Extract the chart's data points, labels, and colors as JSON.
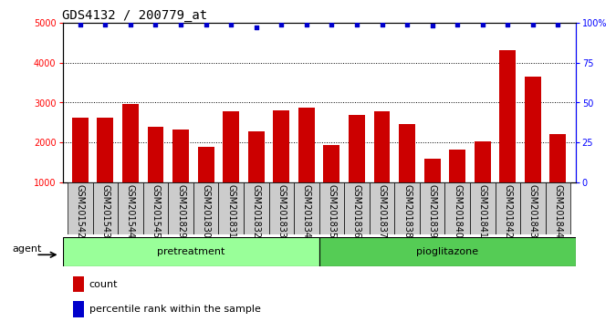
{
  "title": "GDS4132 / 200779_at",
  "categories": [
    "GSM201542",
    "GSM201543",
    "GSM201544",
    "GSM201545",
    "GSM201829",
    "GSM201830",
    "GSM201831",
    "GSM201832",
    "GSM201833",
    "GSM201834",
    "GSM201835",
    "GSM201836",
    "GSM201837",
    "GSM201838",
    "GSM201839",
    "GSM201840",
    "GSM201841",
    "GSM201842",
    "GSM201843",
    "GSM201844"
  ],
  "bar_values": [
    2630,
    2620,
    2960,
    2390,
    2330,
    1890,
    2790,
    2280,
    2800,
    2870,
    1930,
    2680,
    2780,
    2450,
    1590,
    1820,
    2020,
    4310,
    3640,
    2210
  ],
  "percentile_values": [
    99,
    99,
    99,
    99,
    99,
    99,
    99,
    97,
    99,
    99,
    99,
    99,
    99,
    99,
    98,
    99,
    99,
    99,
    99,
    99
  ],
  "bar_color": "#cc0000",
  "percentile_color": "#0000cc",
  "ylim_left": [
    1000,
    5000
  ],
  "ylim_right": [
    0,
    100
  ],
  "yticks_left": [
    1000,
    2000,
    3000,
    4000,
    5000
  ],
  "yticks_right": [
    0,
    25,
    50,
    75,
    100
  ],
  "ytick_labels_right": [
    "0",
    "25",
    "50",
    "75",
    "100%"
  ],
  "group1_display": "pretreatment",
  "group2_display": "pioglitazone",
  "group1_count": 10,
  "group2_count": 10,
  "agent_label": "agent",
  "legend_count_label": "count",
  "legend_percentile_label": "percentile rank within the sample",
  "group1_color": "#99ff99",
  "group2_color": "#55cc55",
  "tick_label_bg": "#cccccc",
  "title_fontsize": 10,
  "tick_fontsize": 7,
  "label_fontsize": 7,
  "bar_width": 0.65
}
